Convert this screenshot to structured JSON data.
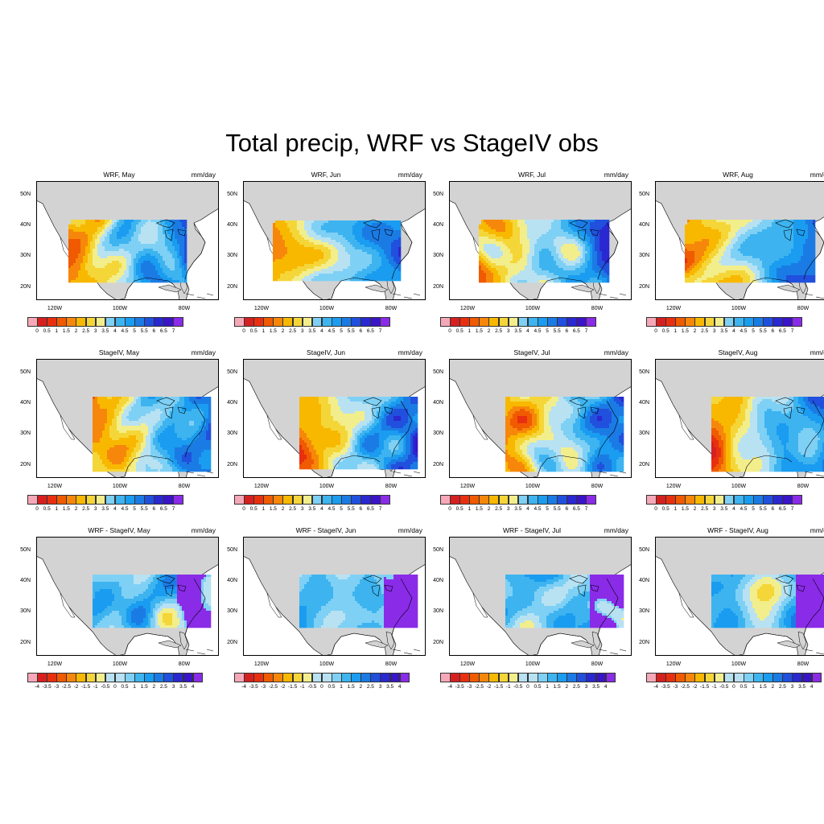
{
  "title": "Total precip, WRF vs StageIV obs",
  "lat_labels": [
    "50N",
    "40N",
    "30N",
    "20N"
  ],
  "lon_labels": [
    "120W",
    "100W",
    "80W"
  ],
  "colors": {
    "land": "#d3d3d3",
    "ocean": "#ffffff",
    "palette": [
      "#f7a8b8",
      "#d62020",
      "#e83010",
      "#f05a00",
      "#f7870a",
      "#f8b800",
      "#f5d638",
      "#f3ee8c",
      "#b8e2f2",
      "#7fd0f5",
      "#3db4f0",
      "#1a9cf0",
      "#1b7be5",
      "#2050dd",
      "#2a28d0",
      "#3a14c8",
      "#8a2be8"
    ]
  },
  "rows": [
    {
      "units": "mm/day",
      "colorbar_labels": [
        "0",
        "0.5",
        "1",
        "1.5",
        "2",
        "2.5",
        "3",
        "3.5",
        "4",
        "4.5",
        "5",
        "5.5",
        "6",
        "6.5",
        "7"
      ],
      "panels": [
        {
          "title": "WRF, May",
          "month": "May"
        },
        {
          "title": "WRF, Jun",
          "month": "Jun"
        },
        {
          "title": "WRF, Jul",
          "month": "Jul"
        },
        {
          "title": "WRF, Aug",
          "month": "Aug"
        }
      ]
    },
    {
      "units": "mm/day",
      "colorbar_labels": [
        "0",
        "0.5",
        "1",
        "1.5",
        "2",
        "2.5",
        "3",
        "3.5",
        "4",
        "4.5",
        "5",
        "5.5",
        "6",
        "6.5",
        "7"
      ],
      "panels": [
        {
          "title": "StageIV, May",
          "month": "May"
        },
        {
          "title": "StageIV, Jun",
          "month": "Jun"
        },
        {
          "title": "StageIV, Jul",
          "month": "Jul"
        },
        {
          "title": "StageIV, Aug",
          "month": "Aug"
        }
      ]
    },
    {
      "units": "mm/day",
      "colorbar_labels": [
        "-4",
        "-3.5",
        "-3",
        "-2.5",
        "-2",
        "-1.5",
        "-1",
        "-0.5",
        "0",
        "0.5",
        "1",
        "1.5",
        "2",
        "2.5",
        "3",
        "3.5",
        "4"
      ],
      "panels": [
        {
          "title": "WRF - StageIV, May",
          "month": "May"
        },
        {
          "title": "WRF - StageIV, Jun",
          "month": "Jun"
        },
        {
          "title": "WRF - StageIV, Jul",
          "month": "Jul"
        },
        {
          "title": "WRF - StageIV, Aug",
          "month": "Aug"
        }
      ]
    }
  ]
}
